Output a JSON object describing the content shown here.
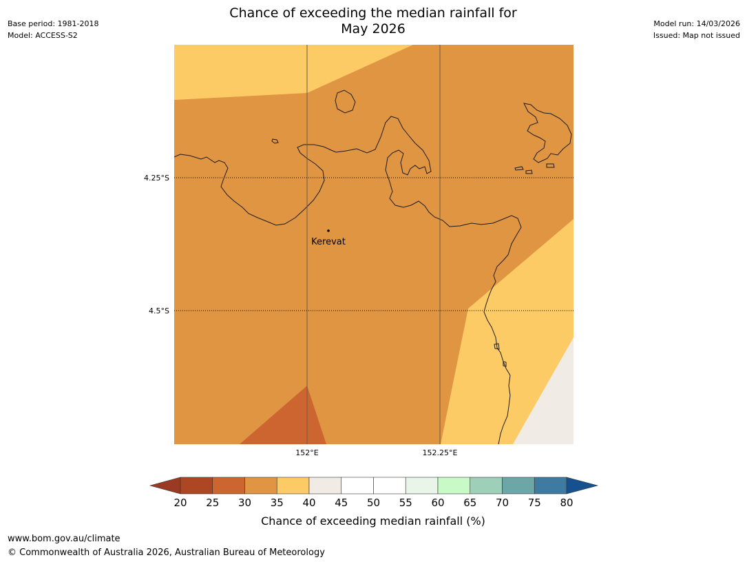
{
  "title": {
    "line1": "Chance of exceeding the median rainfall for",
    "line2": "May 2026"
  },
  "meta": {
    "base_period": "Base period: 1981-2018",
    "model": "Model: ACCESS-S2",
    "model_run": "Model run: 14/03/2026",
    "issued": "Issued: Map not issued"
  },
  "map": {
    "latitudes": [
      "4.25°S",
      "4.5°S"
    ],
    "longitudes": [
      "152°E",
      "152.25°E"
    ],
    "place": "Kerevat",
    "regions": [
      {
        "band": "35-40",
        "color": "#fdcb66"
      },
      {
        "band": "30-35",
        "color": "#e09543"
      },
      {
        "band": "25-30",
        "color": "#cc6530"
      },
      {
        "band": "40-45",
        "color": "#f0ebe5"
      }
    ]
  },
  "colorbar": {
    "title": "Chance of exceeding median rainfall (%)",
    "ticks": [
      "20",
      "25",
      "30",
      "35",
      "40",
      "45",
      "50",
      "55",
      "60",
      "65",
      "70",
      "75",
      "80"
    ],
    "under_color": "#9b3a23",
    "over_color": "#15508f",
    "colors": [
      "#ad4622",
      "#cc6530",
      "#e09543",
      "#fdcb66",
      "#f0ebe5",
      "#ffffff",
      "#ffffff",
      "#eaf5ea",
      "#c8fac8",
      "#9ecfb8",
      "#6ca6a6",
      "#3f7aa0"
    ]
  },
  "footer": {
    "url": "www.bom.gov.au/climate",
    "copyright": "© Commonwealth of Australia 2026, Australian Bureau of Meteorology"
  }
}
